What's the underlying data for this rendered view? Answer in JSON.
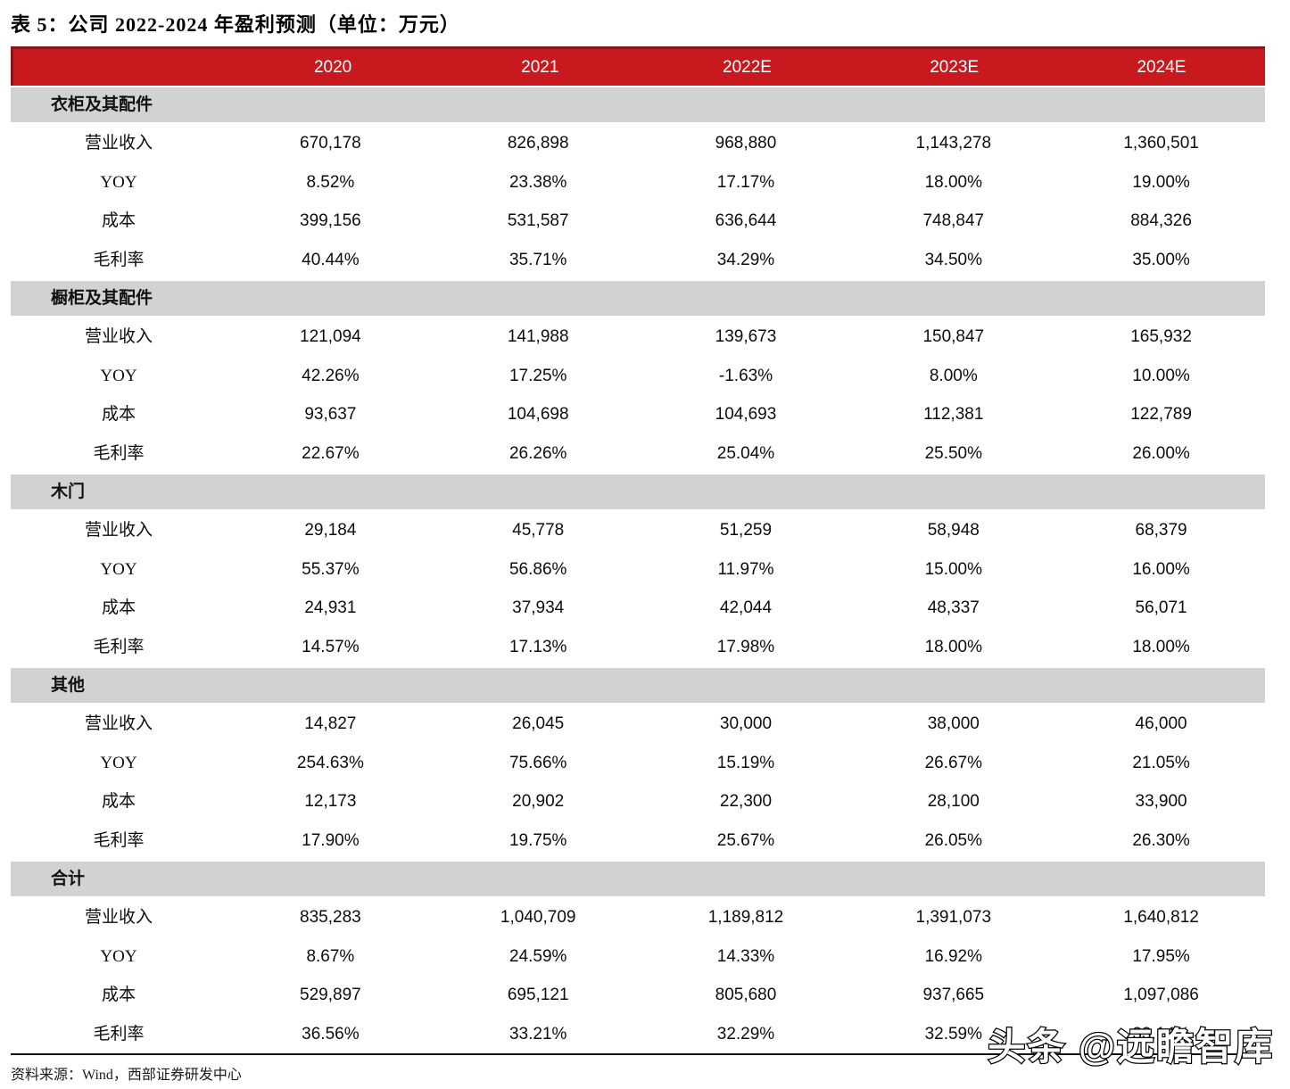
{
  "title": "表 5：公司 2022-2024 年盈利预测（单位：万元）",
  "columns": [
    "2020",
    "2021",
    "2022E",
    "2023E",
    "2024E"
  ],
  "row_labels": [
    "营业收入",
    "YOY",
    "成本",
    "毛利率"
  ],
  "sections": [
    {
      "name": "衣柜及其配件",
      "rows": [
        [
          "670,178",
          "826,898",
          "968,880",
          "1,143,278",
          "1,360,501"
        ],
        [
          "8.52%",
          "23.38%",
          "17.17%",
          "18.00%",
          "19.00%"
        ],
        [
          "399,156",
          "531,587",
          "636,644",
          "748,847",
          "884,326"
        ],
        [
          "40.44%",
          "35.71%",
          "34.29%",
          "34.50%",
          "35.00%"
        ]
      ]
    },
    {
      "name": "橱柜及其配件",
      "rows": [
        [
          "121,094",
          "141,988",
          "139,673",
          "150,847",
          "165,932"
        ],
        [
          "42.26%",
          "17.25%",
          "-1.63%",
          "8.00%",
          "10.00%"
        ],
        [
          "93,637",
          "104,698",
          "104,693",
          "112,381",
          "122,789"
        ],
        [
          "22.67%",
          "26.26%",
          "25.04%",
          "25.50%",
          "26.00%"
        ]
      ]
    },
    {
      "name": "木门",
      "rows": [
        [
          "29,184",
          "45,778",
          "51,259",
          "58,948",
          "68,379"
        ],
        [
          "55.37%",
          "56.86%",
          "11.97%",
          "15.00%",
          "16.00%"
        ],
        [
          "24,931",
          "37,934",
          "42,044",
          "48,337",
          "56,071"
        ],
        [
          "14.57%",
          "17.13%",
          "17.98%",
          "18.00%",
          "18.00%"
        ]
      ]
    },
    {
      "name": "其他",
      "rows": [
        [
          "14,827",
          "26,045",
          "30,000",
          "38,000",
          "46,000"
        ],
        [
          "254.63%",
          "75.66%",
          "15.19%",
          "26.67%",
          "21.05%"
        ],
        [
          "12,173",
          "20,902",
          "22,300",
          "28,100",
          "33,900"
        ],
        [
          "17.90%",
          "19.75%",
          "25.67%",
          "26.05%",
          "26.30%"
        ]
      ]
    },
    {
      "name": "合计",
      "rows": [
        [
          "835,283",
          "1,040,709",
          "1,189,812",
          "1,391,073",
          "1,640,812"
        ],
        [
          "8.67%",
          "24.59%",
          "14.33%",
          "16.92%",
          "17.95%"
        ],
        [
          "529,897",
          "695,121",
          "805,680",
          "937,665",
          "1,097,086"
        ],
        [
          "36.56%",
          "33.21%",
          "32.29%",
          "32.59%",
          "33.14%"
        ]
      ]
    }
  ],
  "source": "资料来源：Wind，西部证券研发中心",
  "watermark": "头条 @远瞻智库",
  "colors": {
    "header_red": "#C8191F",
    "header_dark_red": "#8D1216",
    "section_gray": "#D2D2D2"
  }
}
